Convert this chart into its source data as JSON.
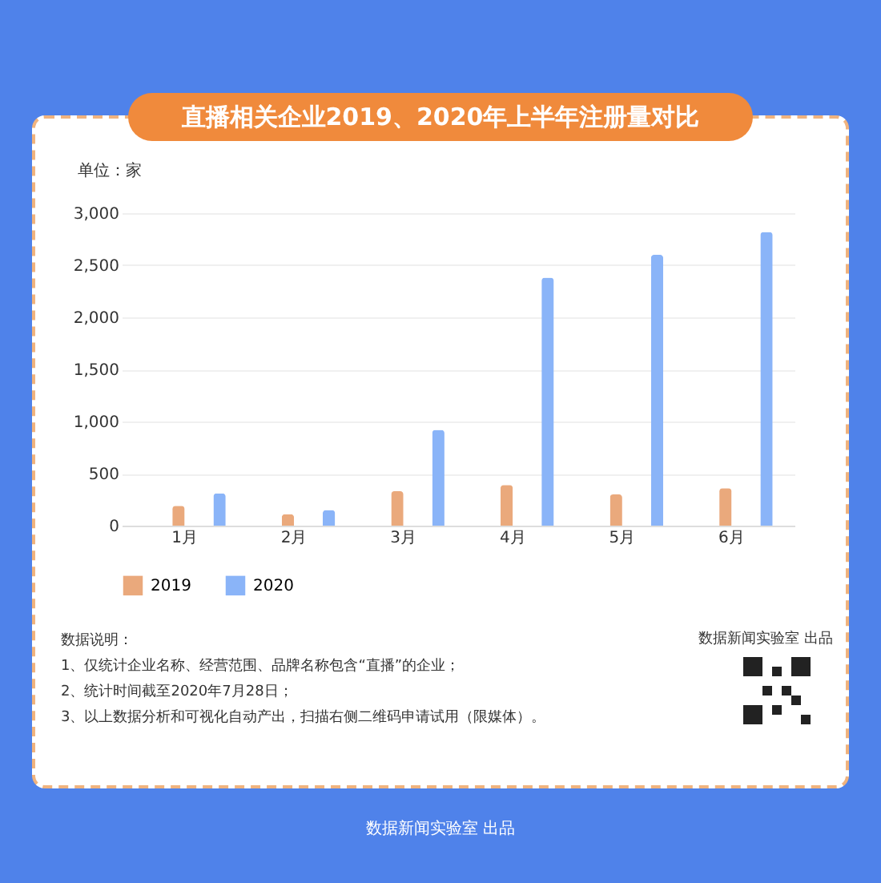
{
  "chart_data": {
    "type": "bar",
    "title": "直播相关企业2019、2020年上半年注册量对比",
    "ylabel": "单位：家",
    "categories": [
      "1月",
      "2月",
      "3月",
      "4月",
      "5月",
      "6月"
    ],
    "series": [
      {
        "name": "2019",
        "color": "#eaa97c",
        "values": [
          190,
          110,
          330,
          390,
          300,
          360
        ]
      },
      {
        "name": "2020",
        "color": "#8ab4f8",
        "values": [
          310,
          150,
          920,
          2380,
          2600,
          2820
        ]
      }
    ],
    "ylim": [
      0,
      3000
    ],
    "yticks": [
      0,
      500,
      {
        "value": 1000,
        "label": "1,000"
      },
      {
        "value": 1500,
        "label": "1,500"
      },
      {
        "value": 2000,
        "label": "2,000"
      },
      {
        "value": 2500,
        "label": "2,500"
      },
      {
        "value": 3000,
        "label": "3,000"
      }
    ],
    "grid": "y",
    "legend": "bottom",
    "annotations": [
      "数据新闻实验室 出品",
      "数据说明：",
      "1、仅统计企业名称、经营范围、品牌名称包含“直播”的企业；",
      "2、统计时间截至2020年7月28日；",
      "3、以上数据分析和可视化自动产出，扫描右侧二维码申请试用（限媒体）。",
      "数据新闻实验室 出品"
    ]
  }
}
